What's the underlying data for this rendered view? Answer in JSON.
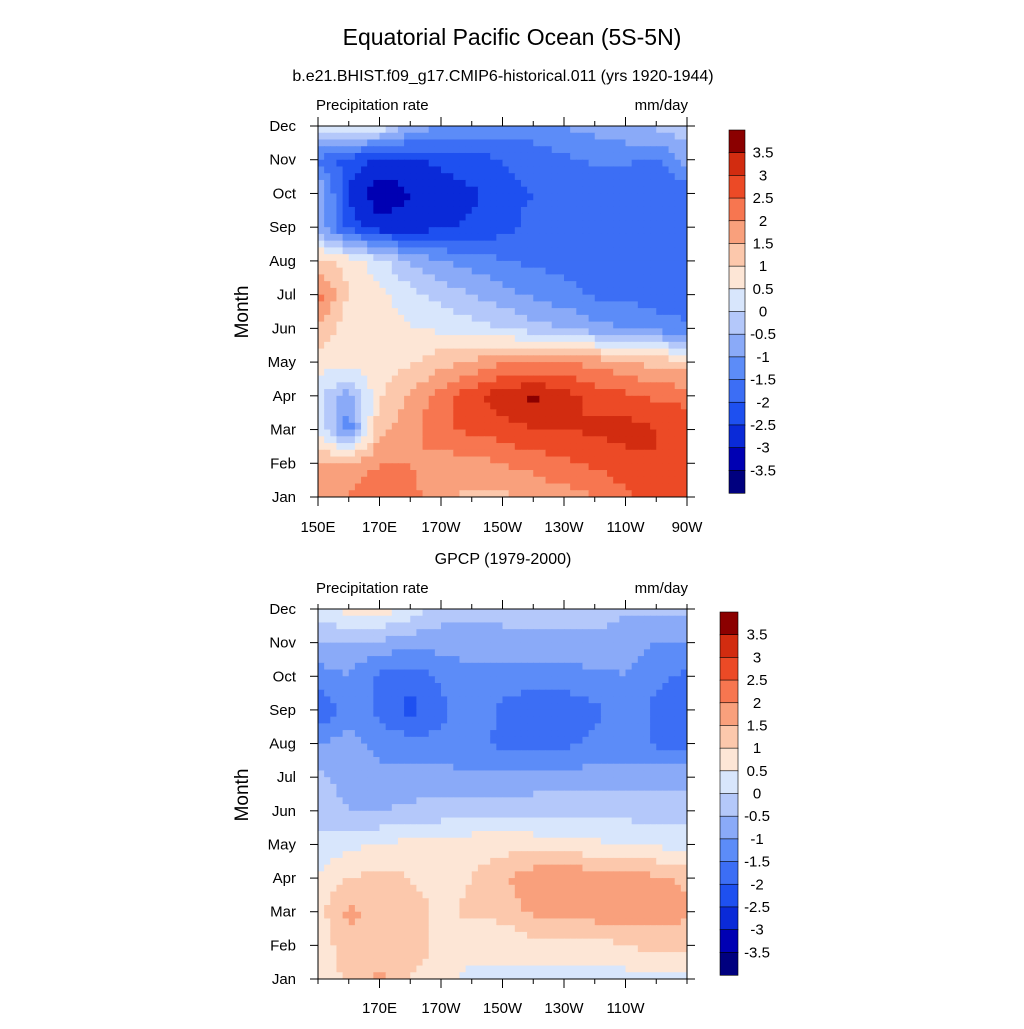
{
  "title": "Equatorial Pacific Ocean (5S-5N)",
  "chart_data": [
    {
      "type": "heatmap",
      "title": "b.e21.BHIST.f09_g17.CMIP6-historical.011 (yrs 1920-1944)",
      "left_label": "Precipitation rate",
      "right_label": "mm/day",
      "ylabel": "Month",
      "x_tick_labels": [
        "150E",
        "170E",
        "170W",
        "150W",
        "130W",
        "110W",
        "90W"
      ],
      "x_ticks_deg": [
        150,
        170,
        190,
        210,
        230,
        250,
        270
      ],
      "x_range_deg": [
        150,
        270
      ],
      "months": [
        "Jan",
        "Feb",
        "Mar",
        "Apr",
        "May",
        "Jun",
        "Jul",
        "Aug",
        "Sep",
        "Oct",
        "Nov",
        "Dec"
      ],
      "lon": [
        150,
        160,
        170,
        180,
        190,
        200,
        210,
        220,
        230,
        240,
        250,
        260,
        270
      ],
      "values": [
        [
          1.8,
          2.0,
          2.4,
          2.2,
          1.6,
          1.4,
          1.4,
          1.6,
          1.8,
          2.0,
          2.4,
          2.8,
          3.0
        ],
        [
          1.6,
          1.6,
          2.0,
          2.0,
          1.8,
          1.8,
          2.0,
          2.2,
          2.4,
          2.6,
          2.8,
          3.0,
          3.0
        ],
        [
          0.4,
          -1.4,
          1.4,
          1.8,
          2.4,
          2.6,
          2.8,
          3.0,
          3.0,
          3.1,
          3.2,
          3.0,
          2.9
        ],
        [
          0.2,
          -0.8,
          0.9,
          1.6,
          2.2,
          2.8,
          3.3,
          3.6,
          3.2,
          2.8,
          2.6,
          2.4,
          2.3
        ],
        [
          0.7,
          0.8,
          0.8,
          0.9,
          1.3,
          1.6,
          1.9,
          2.0,
          2.0,
          1.8,
          1.6,
          1.3,
          1.2
        ],
        [
          1.5,
          0.6,
          0.8,
          0.5,
          0.4,
          0.2,
          0.0,
          -0.3,
          -0.5,
          -0.8,
          -1.0,
          -1.2,
          -1.4
        ],
        [
          2.2,
          1.0,
          0.6,
          0.2,
          -0.2,
          -0.5,
          -0.8,
          -1.1,
          -1.3,
          -1.6,
          -1.6,
          -1.8,
          -1.8
        ],
        [
          1.2,
          0.8,
          0.2,
          -0.6,
          -1.0,
          -1.2,
          -1.5,
          -1.6,
          -1.7,
          -1.8,
          -1.8,
          -1.8,
          -1.8
        ],
        [
          -0.8,
          -2.2,
          -2.8,
          -2.8,
          -2.6,
          -2.4,
          -2.2,
          -1.8,
          -1.8,
          -1.8,
          -1.8,
          -1.8,
          -1.8
        ],
        [
          -0.4,
          -2.6,
          -3.4,
          -3.0,
          -2.8,
          -2.6,
          -2.2,
          -2.0,
          -2.0,
          -2.0,
          -2.0,
          -2.0,
          -1.8
        ],
        [
          -1.6,
          -2.2,
          -2.6,
          -2.6,
          -2.4,
          -2.2,
          -2.0,
          -1.8,
          -1.6,
          -1.4,
          -1.4,
          -1.6,
          -0.8
        ],
        [
          0.2,
          0.6,
          0.4,
          -0.6,
          -1.0,
          -1.2,
          -1.2,
          -1.2,
          -1.0,
          -0.8,
          -0.6,
          -0.4,
          -0.2
        ]
      ]
    },
    {
      "type": "heatmap",
      "title": "GPCP (1979-2000)",
      "left_label": "Precipitation rate",
      "right_label": "mm/day",
      "ylabel": "Month",
      "x_tick_labels": [
        "170E",
        "170W",
        "150W",
        "130W",
        "110W"
      ],
      "x_ticks_deg": [
        170,
        190,
        210,
        230,
        250
      ],
      "x_range_deg": [
        150,
        270
      ],
      "months": [
        "Jan",
        "Feb",
        "Mar",
        "Apr",
        "May",
        "Jun",
        "Jul",
        "Aug",
        "Sep",
        "Oct",
        "Nov",
        "Dec"
      ],
      "lon": [
        150,
        160,
        170,
        180,
        190,
        200,
        210,
        220,
        230,
        240,
        250,
        260,
        270
      ],
      "values": [
        [
          0.4,
          1.2,
          1.6,
          1.0,
          0.6,
          0.4,
          0.4,
          0.3,
          0.2,
          0.2,
          0.3,
          0.4,
          0.4
        ],
        [
          0.6,
          1.4,
          1.3,
          1.4,
          0.8,
          0.6,
          0.6,
          0.8,
          0.8,
          0.8,
          1.0,
          1.2,
          1.2
        ],
        [
          0.8,
          1.6,
          1.4,
          1.2,
          0.9,
          1.1,
          1.2,
          1.6,
          1.8,
          1.8,
          1.8,
          1.7,
          1.6
        ],
        [
          0.6,
          1.0,
          1.2,
          1.0,
          0.8,
          1.0,
          1.4,
          1.8,
          2.0,
          1.8,
          1.7,
          1.6,
          1.4
        ],
        [
          0.1,
          0.4,
          0.5,
          0.7,
          0.7,
          0.8,
          0.8,
          0.8,
          0.7,
          0.6,
          0.5,
          0.4,
          0.3
        ],
        [
          -0.2,
          -0.5,
          -0.5,
          -0.4,
          -0.3,
          -0.2,
          -0.2,
          -0.2,
          -0.2,
          -0.2,
          -0.2,
          -0.3,
          -0.3
        ],
        [
          -0.4,
          -0.7,
          -0.8,
          -0.8,
          -0.8,
          -0.9,
          -0.9,
          -0.8,
          -0.8,
          -0.8,
          -0.8,
          -0.7,
          -0.6
        ],
        [
          -1.0,
          -0.8,
          -1.2,
          -1.3,
          -1.4,
          -1.3,
          -1.6,
          -1.7,
          -1.6,
          -1.4,
          -1.2,
          -1.6,
          -1.6
        ],
        [
          -2.1,
          -1.2,
          -1.6,
          -2.2,
          -1.6,
          -1.2,
          -1.6,
          -1.7,
          -1.8,
          -1.6,
          -1.2,
          -1.6,
          -1.7
        ],
        [
          -1.2,
          -1.0,
          -1.6,
          -1.8,
          -1.4,
          -1.2,
          -1.3,
          -1.4,
          -1.3,
          -1.1,
          -1.0,
          -1.4,
          -1.6
        ],
        [
          -0.6,
          -0.6,
          -0.6,
          -0.8,
          -0.8,
          -0.7,
          -0.6,
          -0.6,
          -0.6,
          -0.6,
          -0.8,
          -1.0,
          -1.0
        ],
        [
          0.4,
          0.7,
          0.8,
          0.3,
          -0.2,
          -0.4,
          -0.4,
          -0.4,
          -0.3,
          -0.3,
          -0.4,
          -0.4,
          -0.4
        ]
      ]
    }
  ],
  "colorbar": {
    "labels": [
      "3.5",
      "3",
      "2.5",
      "2",
      "1.5",
      "1",
      "0.5",
      "0",
      "-0.5",
      "-1",
      "-1.5",
      "-2",
      "-2.5",
      "-3",
      "-3.5"
    ],
    "levels": [
      -3.5,
      -3,
      -2.5,
      -2,
      -1.5,
      -1,
      -0.5,
      0,
      0.5,
      1,
      1.5,
      2,
      2.5,
      3,
      3.5
    ],
    "colors": [
      "#00007f",
      "#0000b3",
      "#0a2ad8",
      "#1e50f0",
      "#3c6ef5",
      "#5c8cf8",
      "#8aaaf8",
      "#b4c8fa",
      "#d8e6fc",
      "#fde6d6",
      "#fcc8ac",
      "#f9a07c",
      "#f77650",
      "#ec4a26",
      "#d22c10",
      "#8b0000"
    ]
  }
}
